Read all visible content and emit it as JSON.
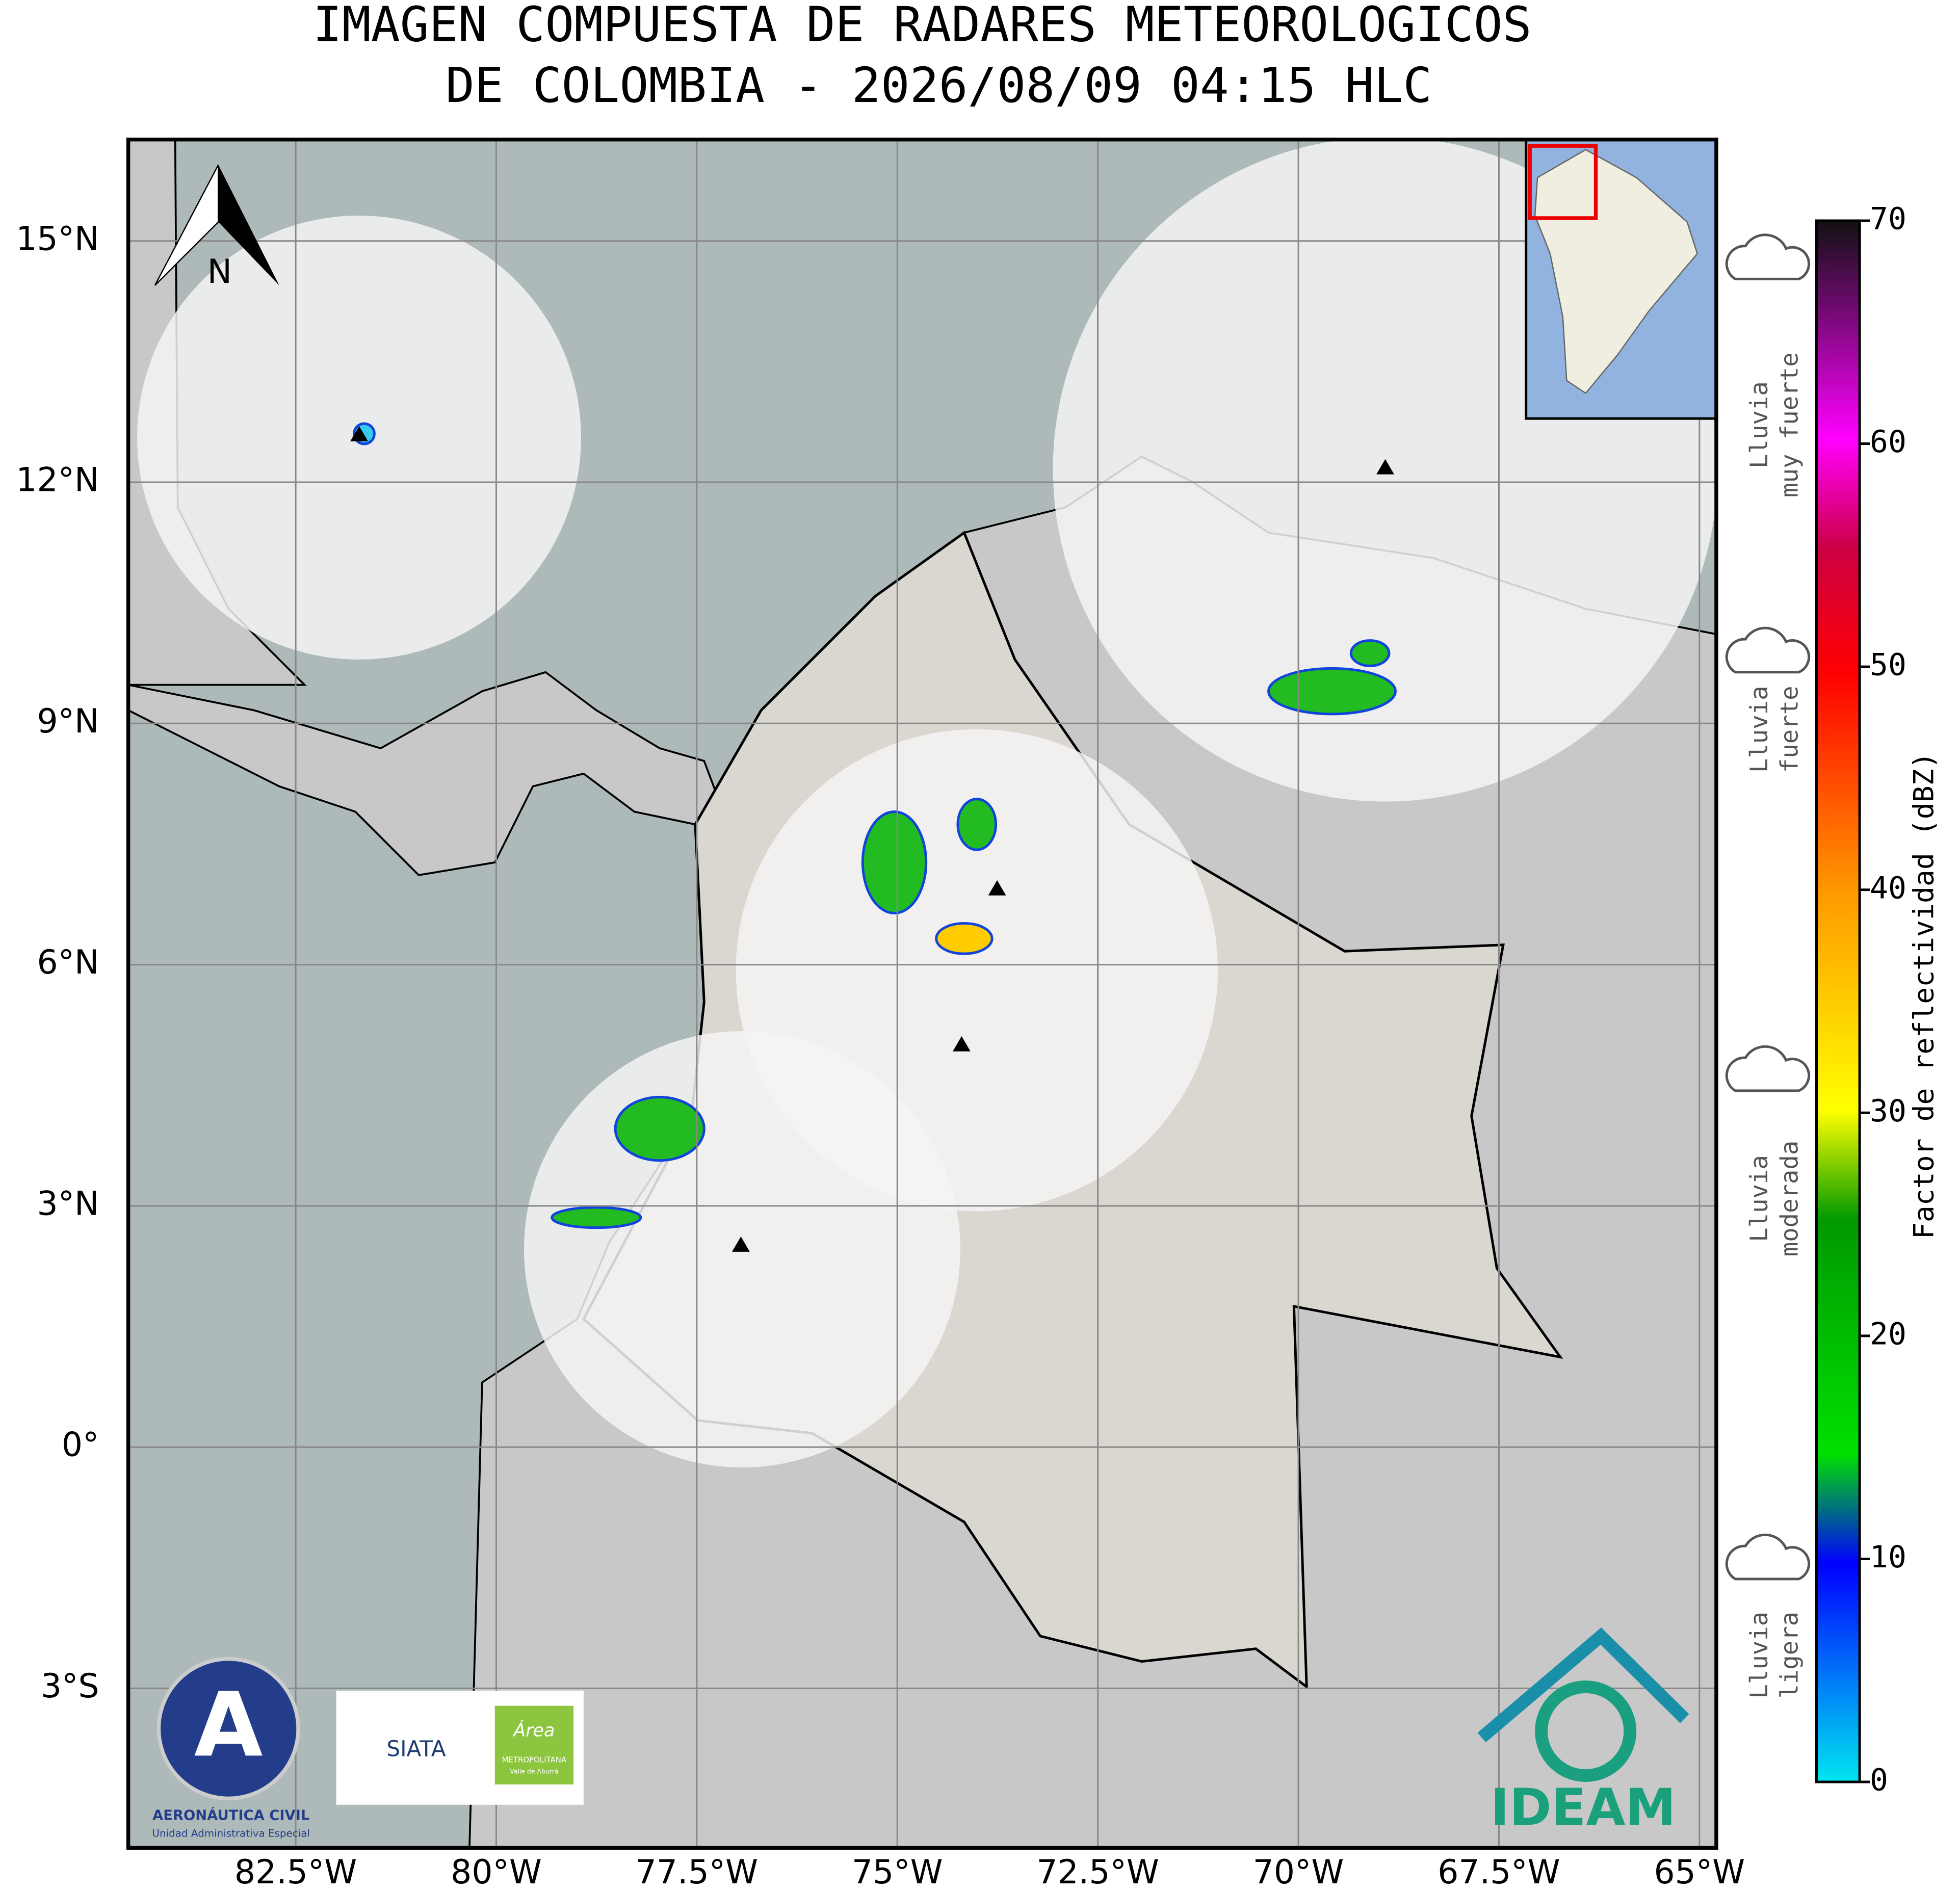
{
  "title": [
    "IMAGEN COMPUESTA DE RADARES METEOROLOGICOS",
    "DE COLOMBIA - 2026/08/09 04:15 HLC"
  ],
  "map": {
    "lat_ticks": [
      {
        "value": 15,
        "label": "15°N"
      },
      {
        "value": 12,
        "label": "12°N"
      },
      {
        "value": 9,
        "label": "9°N"
      },
      {
        "value": 6,
        "label": "6°N"
      },
      {
        "value": 3,
        "label": "3°N"
      },
      {
        "value": 0,
        "label": "0°"
      },
      {
        "value": -3,
        "label": "3°S"
      }
    ],
    "lon_ticks": [
      {
        "value": -82.5,
        "label": "82.5°W"
      },
      {
        "value": -80,
        "label": "80°W"
      },
      {
        "value": -77.5,
        "label": "77.5°W"
      },
      {
        "value": -75,
        "label": "75°W"
      },
      {
        "value": -72.5,
        "label": "72.5°W"
      },
      {
        "value": -70,
        "label": "70°W"
      },
      {
        "value": -67.5,
        "label": "67.5°W"
      },
      {
        "value": -65,
        "label": "65°W"
      }
    ],
    "north_label": "N"
  },
  "colorbar": {
    "label": "Factor de reflectividad (dBZ)",
    "range": [
      0,
      70
    ],
    "ticks": [
      0,
      10,
      20,
      30,
      40,
      50,
      60,
      70
    ]
  },
  "rain_categories": [
    [
      "Lluvia",
      "muy fuerte"
    ],
    [
      "Lluvia",
      "fuerte"
    ],
    [
      "Lluvia",
      "moderada"
    ],
    [
      "Lluvia",
      "ligera"
    ]
  ],
  "logos": {
    "aerocivil": [
      "AERONÁUTICA CIVIL",
      "Unidad Administrativa Especial"
    ],
    "siata": "SIATA",
    "area": [
      "Área",
      "METROPOLITANA",
      "Valle de Aburrá"
    ],
    "ideam": "IDEAM"
  }
}
